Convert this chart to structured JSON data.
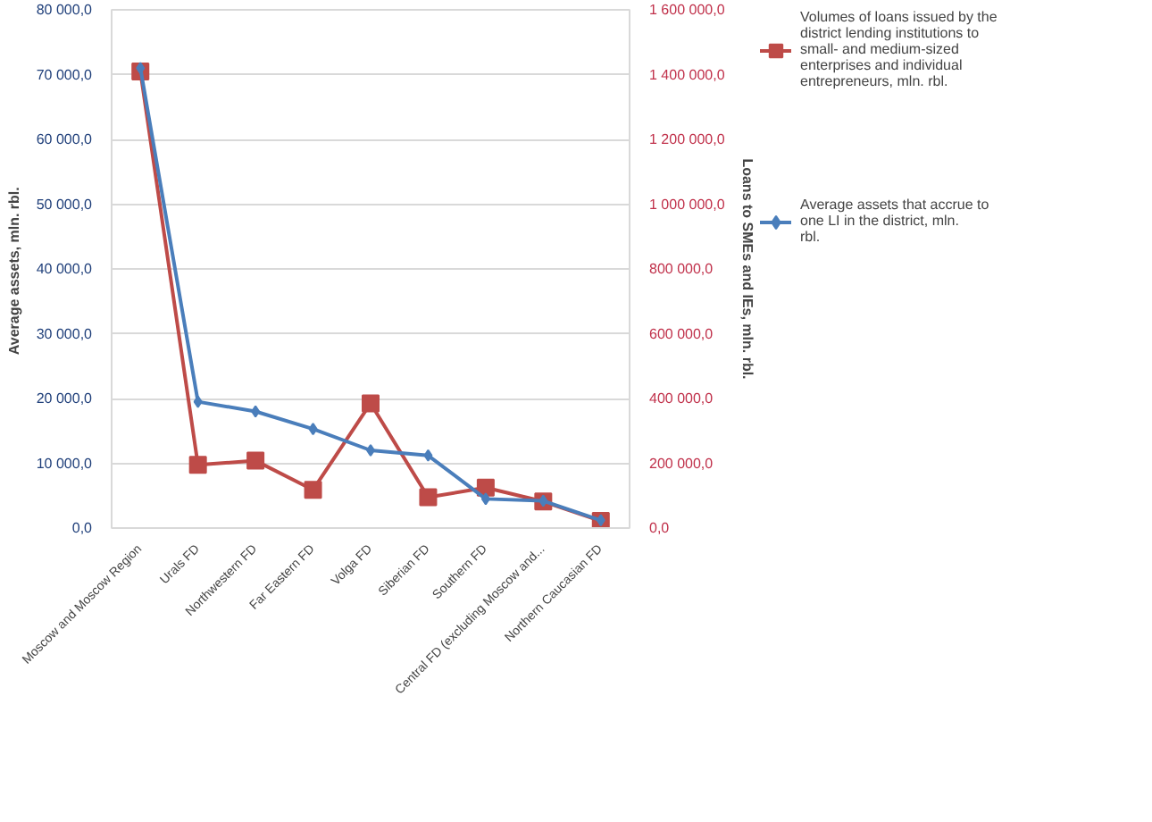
{
  "chart_data": {
    "type": "line",
    "categories": [
      "Moscow and Moscow Region",
      "Urals FD",
      "Northwestern FD",
      "Far Eastern FD",
      "Volga FD",
      "Siberian FD",
      "Southern FD",
      "Central FD (excluding Moscow and...",
      "Northern Caucasian FD"
    ],
    "ylabel": "Average  assets, mln. rbl.",
    "y2label": "Loans to SMEs and IEs, mln. rbl.",
    "ylim": [
      0,
      80000
    ],
    "yticks": [
      {
        "value": 0,
        "label": "0,0"
      },
      {
        "value": 10000,
        "label": "10 000,0"
      },
      {
        "value": 20000,
        "label": "20 000,0"
      },
      {
        "value": 30000,
        "label": "30 000,0"
      },
      {
        "value": 40000,
        "label": "40 000,0"
      },
      {
        "value": 50000,
        "label": "50 000,0"
      },
      {
        "value": 60000,
        "label": "60 000,0"
      },
      {
        "value": 70000,
        "label": "70 000,0"
      },
      {
        "value": 80000,
        "label": "80 000,0"
      }
    ],
    "y2lim": [
      0,
      1600000
    ],
    "y2ticks": [
      {
        "value": 0,
        "label": "0,0"
      },
      {
        "value": 200000,
        "label": "200 000,0"
      },
      {
        "value": 400000,
        "label": "400 000,0"
      },
      {
        "value": 600000,
        "label": "600 000,0"
      },
      {
        "value": 800000,
        "label": "800 000,0"
      },
      {
        "value": 1000000,
        "label": "1 000 000,0"
      },
      {
        "value": 1200000,
        "label": "1 200 000,0"
      },
      {
        "value": 1400000,
        "label": "1 400 000,0"
      },
      {
        "value": 1600000,
        "label": "1 600 000,0"
      }
    ],
    "series": [
      {
        "name": "Average assets that accrue to one LI in the district, mln. rbl.",
        "color": "#4a7ebb",
        "marker": "diamond",
        "values": [
          71000,
          19500,
          18000,
          15300,
          12000,
          11200,
          4500,
          4200,
          1200
        ]
      },
      {
        "name": "Volumes of loans issued by the district lending institutions to small- and medium-sized enterprises and individual entrepreneurs, mln. rbl.",
        "color": "#be4b48",
        "marker": "square",
        "axis": "y2",
        "values": [
          1410000,
          195000,
          208000,
          118000,
          385000,
          95000,
          125000,
          82000,
          22000
        ]
      }
    ],
    "grid": "y",
    "legend": "right"
  }
}
